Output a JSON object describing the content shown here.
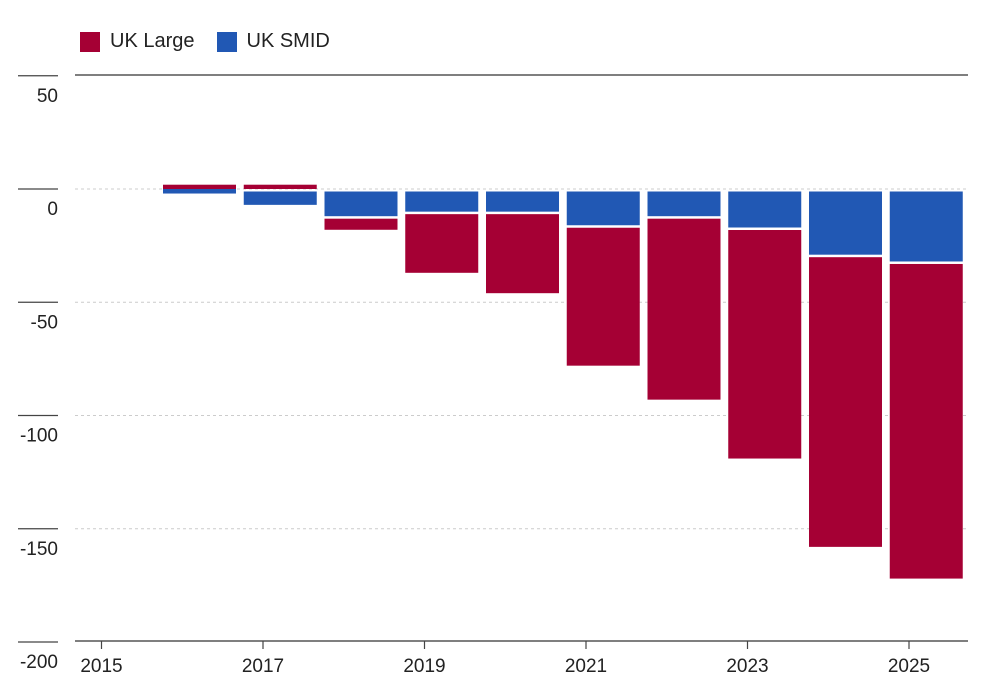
{
  "chart_data": {
    "type": "bar",
    "stacked": true,
    "title": "",
    "xlabel": "",
    "ylabel": "",
    "ylim": [
      -200,
      50
    ],
    "y_ticks": [
      "50",
      "0",
      "-50",
      "-100",
      "-150",
      "-200"
    ],
    "y_tick_values": [
      50,
      0,
      -50,
      -100,
      -150,
      -200
    ],
    "x_ticks": [
      "2015",
      "2017",
      "2019",
      "2021",
      "2023",
      "2025"
    ],
    "x_tick_values": [
      2015,
      2017,
      2019,
      2021,
      2023,
      2025
    ],
    "grid": true,
    "legend_position": "top-left",
    "categories": [
      2016,
      2017,
      2018,
      2019,
      2020,
      2021,
      2022,
      2023,
      2024,
      2025
    ],
    "series": [
      {
        "name": "UK Large",
        "color": "#a50034",
        "values": [
          3,
          3,
          -6,
          -27,
          -36,
          -62,
          -81,
          -102,
          -129,
          -140
        ]
      },
      {
        "name": "UK SMID",
        "color": "#2158b4",
        "values": [
          -2,
          -7,
          -12,
          -10,
          -10,
          -16,
          -12,
          -17,
          -29,
          -32
        ]
      }
    ]
  }
}
